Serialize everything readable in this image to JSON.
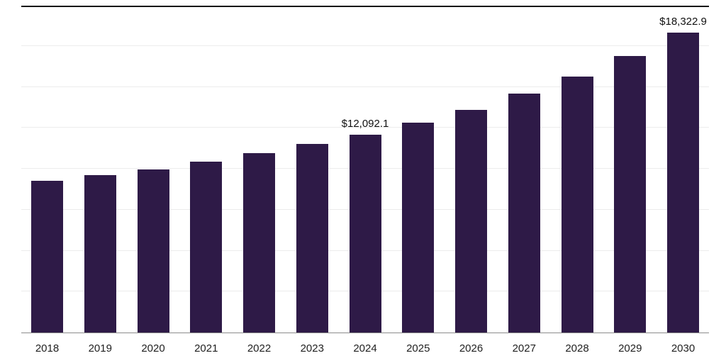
{
  "chart_data": {
    "type": "bar",
    "title": "",
    "xlabel": "",
    "ylabel": "",
    "categories": [
      "2018",
      "2019",
      "2020",
      "2021",
      "2022",
      "2023",
      "2024",
      "2025",
      "2026",
      "2027",
      "2028",
      "2029",
      "2030"
    ],
    "values": [
      9250,
      9600,
      9970,
      10440,
      10950,
      11500,
      12092.1,
      12820,
      13590,
      14570,
      15630,
      16870,
      18322.9
    ],
    "value_labels": [
      "",
      "",
      "",
      "",
      "",
      "",
      "$12,092.1",
      "",
      "",
      "",
      "",
      "",
      "$18,322.9"
    ],
    "ylim": [
      0,
      20000
    ],
    "gridline_step": 2500,
    "grid_on": true,
    "legend": "none",
    "bar_color": "#2E1A47",
    "grid_color": "#ECECEC",
    "axis_color": "#8C8C8C",
    "top_border_color": "#141414",
    "label_color": "#111111"
  }
}
